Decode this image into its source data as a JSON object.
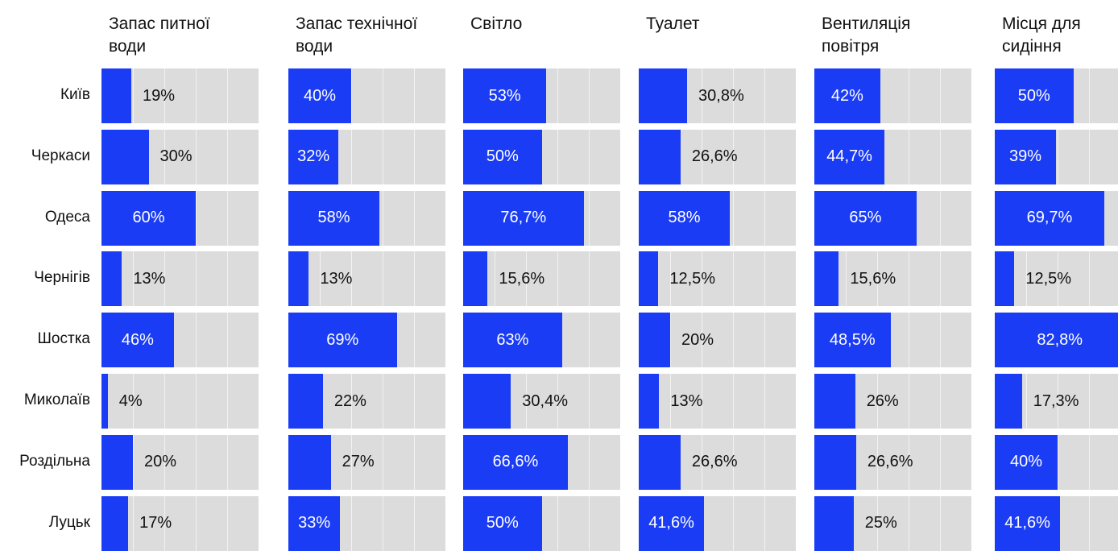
{
  "chart_data": {
    "type": "bar",
    "orientation": "horizontal",
    "unit": "%",
    "xlim": [
      0,
      100
    ],
    "grid": true,
    "categories": [
      "Київ",
      "Черкаси",
      "Одеса",
      "Чернігів",
      "Шостка",
      "Миколаїв",
      "Роздільна",
      "Луцьк"
    ],
    "series": [
      {
        "name": "Запас питної води",
        "values": [
          19,
          30,
          60,
          13,
          46,
          4,
          20,
          17
        ],
        "labels": [
          "19%",
          "30%",
          "60%",
          "13%",
          "46%",
          "4%",
          "20%",
          "17%"
        ]
      },
      {
        "name": "Запас технічної води",
        "values": [
          40,
          32,
          58,
          13,
          69,
          22,
          27,
          33
        ],
        "labels": [
          "40%",
          "32%",
          "58%",
          "13%",
          "69%",
          "22%",
          "27%",
          "33%"
        ]
      },
      {
        "name": "Світло",
        "values": [
          53,
          50,
          76.7,
          15.6,
          63,
          30.4,
          66.6,
          50
        ],
        "labels": [
          "53%",
          "50%",
          "76,7%",
          "15,6%",
          "63%",
          "30,4%",
          "66,6%",
          "50%"
        ]
      },
      {
        "name": "Туалет",
        "values": [
          30.8,
          26.6,
          58,
          12.5,
          20,
          13,
          26.6,
          41.6
        ],
        "labels": [
          "30,8%",
          "26,6%",
          "58%",
          "12,5%",
          "20%",
          "13%",
          "26,6%",
          "41,6%"
        ]
      },
      {
        "name": "Вентиляція повітря",
        "values": [
          42,
          44.7,
          65,
          15.6,
          48.5,
          26,
          26.6,
          25
        ],
        "labels": [
          "42%",
          "44,7%",
          "65%",
          "15,6%",
          "48,5%",
          "26%",
          "26,6%",
          "25%"
        ]
      },
      {
        "name": "Місця для сидіння",
        "values": [
          50,
          39,
          69.7,
          12.5,
          82.8,
          17.3,
          40,
          41.6
        ],
        "labels": [
          "50%",
          "39%",
          "69,7%",
          "12,5%",
          "82,8%",
          "17,3%",
          "40%",
          "41,6%"
        ]
      }
    ]
  },
  "colors": {
    "bar": "#1a3cf5",
    "track": "#dcdcdc",
    "text": "#111111",
    "text_on_bar": "#ffffff"
  }
}
